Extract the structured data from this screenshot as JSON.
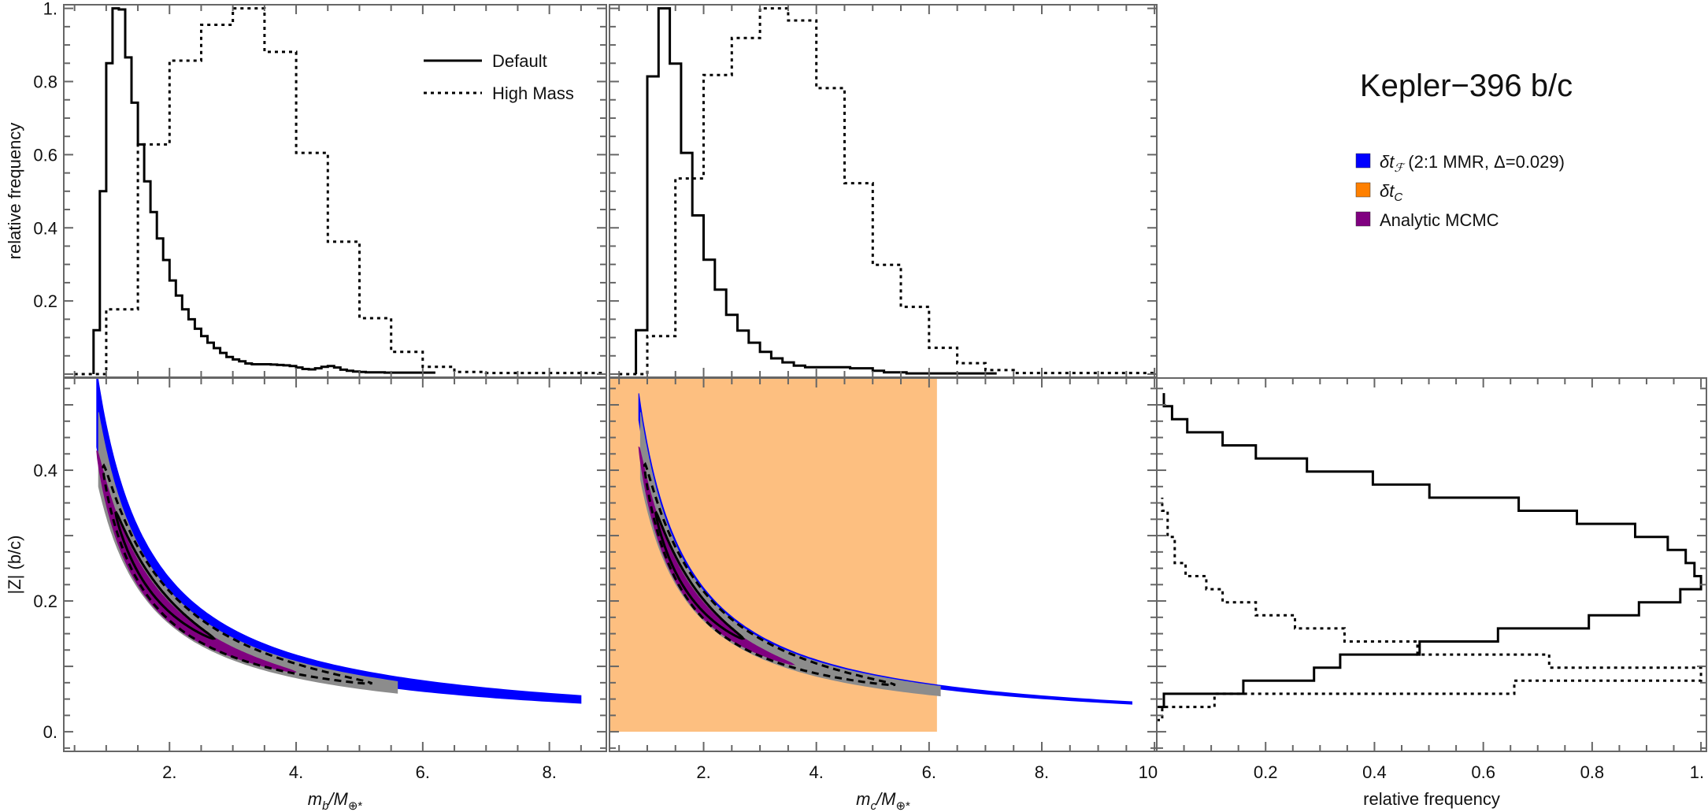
{
  "title": "Kepler−396 b/c",
  "legend_top": [
    {
      "label": "Default",
      "style": "solid"
    },
    {
      "label": "High Mass",
      "style": "dotted"
    }
  ],
  "legend_main": [
    {
      "prefix": "δt",
      "sub": "ℱ",
      "suffix": " (2:1 MMR, Δ=0.029)",
      "color": "#0000FF"
    },
    {
      "prefix": "δt",
      "sub": "C",
      "suffix": "",
      "color": "#FF8000"
    },
    {
      "prefix": "Analytic MCMC",
      "sub": "",
      "suffix": "",
      "color": "#800080"
    }
  ],
  "chart_data": [
    {
      "panel": "top-left",
      "type": "histogram",
      "xlim": [
        0.33,
        8.9
      ],
      "ylim": [
        0,
        1.01
      ],
      "ylabel": "relative frequency",
      "yticks": [
        {
          "v": 0.2,
          "label": "0.2"
        },
        {
          "v": 0.4,
          "label": "0.4"
        },
        {
          "v": 0.6,
          "label": "0.6"
        },
        {
          "v": 0.8,
          "label": "0.8"
        },
        {
          "v": 1.0,
          "label": "1."
        }
      ],
      "series": [
        {
          "name": "Default",
          "style": "solid",
          "bin_start": 0.8,
          "bin_width": 0.1,
          "values": [
            0.12,
            0.5,
            0.85,
            1.0,
            0.997,
            0.866,
            0.742,
            0.628,
            0.527,
            0.443,
            0.371,
            0.312,
            0.256,
            0.215,
            0.177,
            0.15,
            0.124,
            0.104,
            0.086,
            0.071,
            0.058,
            0.047,
            0.04,
            0.035,
            0.029,
            0.027,
            0.027,
            0.027,
            0.026,
            0.025,
            0.024,
            0.022,
            0.018,
            0.014,
            0.013,
            0.016,
            0.02,
            0.022,
            0.018,
            0.012,
            0.009,
            0.007,
            0.006,
            0.005,
            0.005,
            0.005,
            0.004,
            0.004,
            0.004,
            0.004,
            0.004,
            0.004,
            0.004,
            0.004
          ]
        },
        {
          "name": "High Mass",
          "style": "dotted",
          "bin_start": 0.5,
          "bin_width": 0.5,
          "values": [
            0.0,
            0.177,
            0.628,
            0.857,
            0.955,
            1.0,
            0.881,
            0.605,
            0.362,
            0.153,
            0.061,
            0.02,
            0.006,
            0.003,
            0.003,
            0.003,
            0.003
          ]
        }
      ]
    },
    {
      "panel": "top-middle",
      "type": "histogram",
      "xlim": [
        0.33,
        10.04
      ],
      "ylim": [
        0,
        1.01
      ],
      "series": [
        {
          "name": "Default",
          "style": "solid",
          "bin_start": 0.8,
          "bin_width": 0.2,
          "values": [
            0.12,
            0.814,
            1.0,
            0.849,
            0.605,
            0.434,
            0.313,
            0.231,
            0.162,
            0.119,
            0.086,
            0.061,
            0.043,
            0.032,
            0.023,
            0.019,
            0.019,
            0.019,
            0.019,
            0.016,
            0.016,
            0.009,
            0.005,
            0.005,
            0.002,
            0.002,
            0.002,
            0.002,
            0.002,
            0.002,
            0.002,
            0.002
          ]
        },
        {
          "name": "High Mass",
          "style": "dotted",
          "bin_start": 0.5,
          "bin_width": 0.5,
          "values": [
            0.0,
            0.104,
            0.535,
            0.818,
            0.919,
            1.0,
            0.967,
            0.782,
            0.522,
            0.299,
            0.184,
            0.072,
            0.03,
            0.011,
            0.003,
            0.003,
            0.003,
            0.003,
            0.003
          ]
        }
      ]
    },
    {
      "panel": "bottom-left",
      "type": "scatter",
      "xlim": [
        0.33,
        8.9
      ],
      "ylim": [
        -0.03,
        0.541
      ],
      "xlabel": {
        "m": "m",
        "sub": "b",
        "rest": "/M",
        "sub2": "⊕*"
      },
      "ylabel": "|Z| (b/c)",
      "xticks": [
        {
          "v": 2,
          "label": "2."
        },
        {
          "v": 4,
          "label": "4."
        },
        {
          "v": 6,
          "label": "6."
        },
        {
          "v": 8,
          "label": "8."
        }
      ],
      "yticks": [
        {
          "v": 0,
          "label": "0."
        },
        {
          "v": 0.2,
          "label": "0.2"
        },
        {
          "v": 0.4,
          "label": "0.4"
        }
      ],
      "model": "Z = k / m",
      "regions": [
        {
          "name": "dtF-band",
          "kind": "band",
          "color": "#0000FF",
          "k_range": [
            0.37,
            0.47
          ],
          "x_range": [
            0.85,
            8.5
          ]
        },
        {
          "name": "posterior-samples",
          "kind": "band",
          "color": "#8C8C8C",
          "k_range": [
            0.33,
            0.43
          ],
          "x_range": [
            0.88,
            5.6
          ]
        },
        {
          "name": "analytic-mcmc",
          "kind": "lens",
          "color": "#800080",
          "k_range": [
            0.335,
            0.395
          ],
          "x_range": [
            0.85,
            4.0
          ]
        },
        {
          "name": "outer-contour",
          "kind": "contour",
          "style": "dashed",
          "k_range": [
            0.34,
            0.43
          ],
          "x_range": [
            0.95,
            5.2
          ]
        },
        {
          "name": "inner-contour",
          "kind": "contour",
          "style": "solid",
          "k_range": [
            0.365,
            0.405
          ],
          "x_range": [
            1.15,
            2.7
          ]
        }
      ]
    },
    {
      "panel": "bottom-middle",
      "type": "scatter",
      "xlim": [
        0.33,
        10.04
      ],
      "ylim": [
        -0.03,
        0.541
      ],
      "xlabel": {
        "m": "m",
        "sub": "c",
        "rest": "/M",
        "sub2": "⊕*"
      },
      "xticks": [
        {
          "v": 2,
          "label": "2."
        },
        {
          "v": 4,
          "label": "4."
        },
        {
          "v": 6,
          "label": "6."
        },
        {
          "v": 8,
          "label": "8."
        },
        {
          "v": 10,
          "label": "10"
        }
      ],
      "model": "Z = k / m",
      "regions": [
        {
          "name": "dtC-region",
          "kind": "rect",
          "color": "#FDBF80",
          "x_range": [
            0.33,
            6.14
          ],
          "y_range": [
            0,
            0.541
          ]
        },
        {
          "name": "dtF-band",
          "kind": "band",
          "color": "#0000FF",
          "k_range": [
            0.405,
            0.44
          ],
          "x_range": [
            0.85,
            9.6
          ]
        },
        {
          "name": "posterior-samples",
          "kind": "band",
          "color": "#8C8C8C",
          "k_range": [
            0.34,
            0.43
          ],
          "x_range": [
            0.88,
            6.2
          ]
        },
        {
          "name": "analytic-mcmc",
          "kind": "lens",
          "color": "#800080",
          "k_range": [
            0.345,
            0.395
          ],
          "x_range": [
            0.85,
            3.6
          ]
        },
        {
          "name": "outer-contour",
          "kind": "contour",
          "style": "dashed",
          "k_range": [
            0.345,
            0.43
          ],
          "x_range": [
            0.95,
            5.4
          ]
        },
        {
          "name": "inner-contour",
          "kind": "contour",
          "style": "solid",
          "k_range": [
            0.365,
            0.405
          ],
          "x_range": [
            1.15,
            2.7
          ]
        }
      ]
    },
    {
      "panel": "bottom-right",
      "type": "histogram",
      "orientation": "horizontal",
      "xlim": [
        0,
        1.01
      ],
      "ylim": [
        -0.03,
        0.541
      ],
      "xlabel": "relative frequency",
      "xticks": [
        {
          "v": 0.2,
          "label": "0.2"
        },
        {
          "v": 0.4,
          "label": "0.4"
        },
        {
          "v": 0.6,
          "label": "0.6"
        },
        {
          "v": 0.8,
          "label": "0.8"
        },
        {
          "v": 1.0,
          "label": "1."
        }
      ],
      "series": [
        {
          "name": "Default",
          "style": "solid",
          "bin_start": 0.038,
          "bin_width": 0.02,
          "values": [
            0.013,
            0.159,
            0.289,
            0.337,
            0.483,
            0.627,
            0.794,
            0.886,
            0.962,
            1.0,
            0.988,
            0.972,
            0.939,
            0.879,
            0.772,
            0.665,
            0.501,
            0.397,
            0.276,
            0.182,
            0.121,
            0.056,
            0.028,
            0.013
          ]
        },
        {
          "name": "High Mass",
          "style": "dotted",
          "bin_start": 0.018,
          "bin_width": 0.02,
          "values": [
            0.01,
            0.106,
            0.657,
            1.0,
            0.721,
            0.479,
            0.345,
            0.254,
            0.182,
            0.121,
            0.091,
            0.053,
            0.033,
            0.033,
            0.02,
            0.02,
            0.01
          ]
        }
      ]
    }
  ]
}
